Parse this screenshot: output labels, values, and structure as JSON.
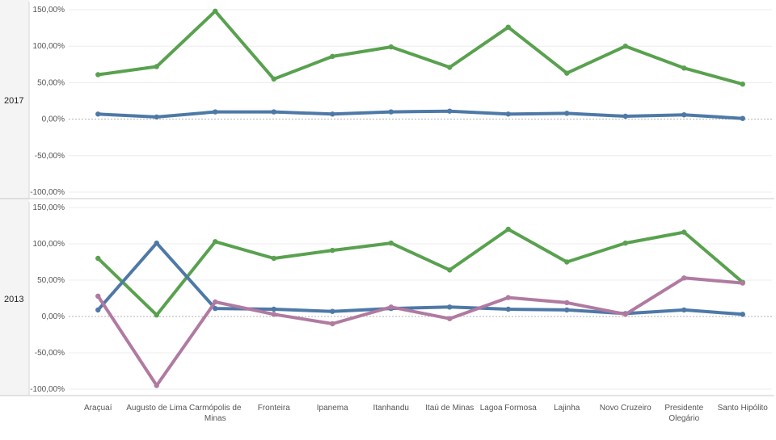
{
  "chart_data": {
    "type": "line",
    "categories": [
      [
        "Araçuaí"
      ],
      [
        "Augusto de Lima"
      ],
      [
        "Carmópolis de",
        "Minas"
      ],
      [
        "Fronteira"
      ],
      [
        "Ipanema"
      ],
      [
        "Itanhandu"
      ],
      [
        "Itaú de Minas"
      ],
      [
        "Lagoa Formosa"
      ],
      [
        "Lajinha"
      ],
      [
        "Novo Cruzeiro"
      ],
      [
        "Presidente",
        "Olegário"
      ],
      [
        "Santo Hipólito"
      ]
    ],
    "y_ticks": [
      "150,00%",
      "100,00%",
      "50,00%",
      "0,00%",
      "-50,00%",
      "-100,00%"
    ],
    "y_tick_values": [
      150,
      100,
      50,
      0,
      -50,
      -100
    ],
    "ylim": [
      -100,
      150
    ],
    "panels": [
      {
        "label": "2017",
        "series": [
          {
            "color": "#59a14f",
            "values": [
              61,
              72,
              148,
              55,
              86,
              99,
              71,
              126,
              63,
              100,
              70,
              48
            ]
          },
          {
            "color": "#4e79a7",
            "values": [
              7,
              3,
              10,
              10,
              7,
              10,
              11,
              7,
              8,
              4,
              6,
              1
            ]
          }
        ]
      },
      {
        "label": "2013",
        "series": [
          {
            "color": "#59a14f",
            "values": [
              80,
              2,
              103,
              80,
              91,
              101,
              64,
              120,
              75,
              101,
              116,
              47
            ]
          },
          {
            "color": "#4e79a7",
            "values": [
              9,
              101,
              11,
              10,
              7,
              11,
              13,
              10,
              9,
              4,
              9,
              3
            ]
          },
          {
            "color": "#b07aa1",
            "values": [
              28,
              -95,
              20,
              3,
              -10,
              13,
              -3,
              26,
              19,
              3,
              53,
              46
            ]
          }
        ]
      }
    ],
    "grid": true
  }
}
